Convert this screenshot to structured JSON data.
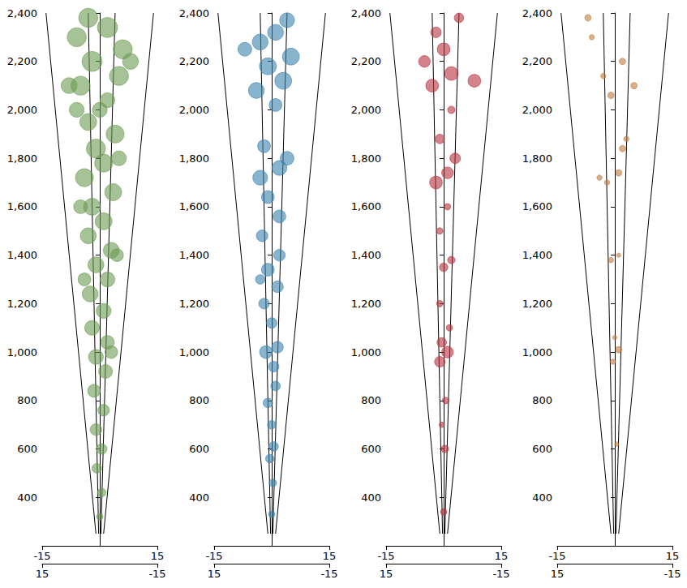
{
  "chart_data": [
    {
      "type": "scatter",
      "color": "#6b9a52",
      "xlim": [
        -15,
        15
      ],
      "xticks": [
        -15,
        15
      ],
      "zlim": [
        -15,
        15
      ],
      "zticks": [
        -15,
        15
      ],
      "ylim": [
        200,
        2400
      ],
      "yticks": [
        400,
        600,
        800,
        1000,
        1200,
        1400,
        1600,
        1800,
        2000,
        2200,
        2400
      ],
      "cone_edges": [
        [
          [
            -1,
            250
          ],
          [
            -14,
            2400
          ]
        ],
        [
          [
            1,
            250
          ],
          [
            14,
            2400
          ]
        ],
        [
          [
            -0.3,
            250
          ],
          [
            -3,
            2400
          ]
        ],
        [
          [
            0.3,
            250
          ],
          [
            4,
            2400
          ]
        ]
      ],
      "points": {
        "x": [
          0,
          0.5,
          -0.8,
          0.5,
          -1,
          1,
          -1.5,
          1.5,
          -1,
          2,
          -2,
          1,
          -2.5,
          2,
          -1,
          3,
          -3,
          1,
          -2,
          3.5,
          -4,
          1,
          -1,
          4,
          -3,
          2,
          -5,
          5,
          -2,
          6,
          -6,
          2,
          -3,
          8,
          -8,
          5,
          -5,
          -4,
          3,
          4.5,
          -6,
          0
        ],
        "y": [
          320,
          420,
          520,
          600,
          680,
          760,
          840,
          920,
          980,
          1040,
          1100,
          1170,
          1240,
          1300,
          1360,
          1420,
          1480,
          1540,
          1600,
          1660,
          1720,
          1780,
          1840,
          1900,
          1950,
          2040,
          2100,
          2140,
          2200,
          2250,
          2300,
          2340,
          2380,
          2200,
          2100,
          1800,
          1600,
          1300,
          1000,
          1400,
          2000,
          2000
        ],
        "size": [
          6,
          8,
          9,
          10,
          11,
          11,
          12,
          13,
          14,
          13,
          14,
          14,
          15,
          14,
          15,
          15,
          15,
          16,
          16,
          16,
          17,
          17,
          18,
          17,
          16,
          14,
          18,
          18,
          19,
          18,
          18,
          19,
          18,
          15,
          15,
          14,
          13,
          12,
          12,
          12,
          14,
          14
        ]
      }
    },
    {
      "type": "scatter",
      "color": "#3a82ad",
      "xlim": [
        -15,
        15
      ],
      "xticks": [
        -15,
        15
      ],
      "zlim": [
        -15,
        15
      ],
      "zticks": [
        -15,
        15
      ],
      "ylim": [
        200,
        2400
      ],
      "yticks": [
        400,
        600,
        800,
        1000,
        1200,
        1400,
        1600,
        1800,
        2000,
        2200,
        2400
      ],
      "cone_edges": [
        [
          [
            -1,
            250
          ],
          [
            -14,
            2400
          ]
        ],
        [
          [
            1,
            250
          ],
          [
            14,
            2400
          ]
        ],
        [
          [
            -0.3,
            250
          ],
          [
            -3,
            2400
          ]
        ],
        [
          [
            0.3,
            250
          ],
          [
            4,
            2400
          ]
        ]
      ],
      "points": {
        "x": [
          0,
          0.3,
          -0.5,
          0.5,
          0,
          -1,
          1,
          0.5,
          -1.5,
          1.5,
          0,
          -2,
          1.5,
          -1,
          2,
          -2.5,
          2,
          -1,
          -3,
          2,
          4,
          -2,
          1,
          -4,
          3,
          -1,
          5,
          -3,
          1,
          4,
          -7,
          -3
        ],
        "y": [
          330,
          460,
          560,
          610,
          700,
          790,
          860,
          940,
          1000,
          1020,
          1120,
          1200,
          1270,
          1340,
          1400,
          1480,
          1560,
          1640,
          1720,
          1760,
          1800,
          1850,
          2020,
          2080,
          2120,
          2180,
          2220,
          2280,
          2320,
          2370,
          2250,
          1300
        ],
        "size": [
          6,
          7,
          8,
          9,
          8,
          9,
          9,
          10,
          12,
          11,
          10,
          10,
          11,
          12,
          11,
          11,
          12,
          12,
          14,
          14,
          13,
          12,
          12,
          15,
          16,
          16,
          16,
          15,
          15,
          14,
          13,
          9
        ]
      }
    },
    {
      "type": "scatter",
      "color": "#b5303a",
      "xlim": [
        -15,
        15
      ],
      "xticks": [
        -15,
        15
      ],
      "zlim": [
        -15,
        15
      ],
      "zticks": [
        -15,
        15
      ],
      "ylim": [
        200,
        2400
      ],
      "yticks": [
        400,
        600,
        800,
        1000,
        1200,
        1400,
        1600,
        1800,
        2000,
        2200,
        2400
      ],
      "cone_edges": [
        [
          [
            -1,
            250
          ],
          [
            -14,
            2400
          ]
        ],
        [
          [
            1,
            250
          ],
          [
            14,
            2400
          ]
        ],
        [
          [
            -0.3,
            250
          ],
          [
            -3,
            2400
          ]
        ],
        [
          [
            0.3,
            250
          ],
          [
            4,
            2400
          ]
        ]
      ],
      "points": {
        "x": [
          0,
          0.3,
          -0.5,
          0.5,
          -1,
          1,
          -0.5,
          1.5,
          -1,
          0,
          2,
          -1,
          1,
          -2,
          1,
          3,
          -1,
          2,
          -3,
          2,
          -5,
          0,
          -2,
          4,
          8
        ],
        "y": [
          340,
          600,
          700,
          800,
          960,
          1000,
          1040,
          1100,
          1200,
          1350,
          1380,
          1500,
          1600,
          1700,
          1740,
          1800,
          1880,
          2000,
          2100,
          2150,
          2200,
          2250,
          2320,
          2380,
          2120
        ],
        "size": [
          6,
          7,
          5,
          6,
          10,
          11,
          9,
          6,
          6,
          8,
          7,
          6,
          6,
          12,
          11,
          10,
          9,
          7,
          12,
          13,
          11,
          12,
          10,
          9,
          12
        ]
      }
    },
    {
      "type": "scatter",
      "color": "#c27a3e",
      "xlim": [
        -15,
        15
      ],
      "xticks": [
        -15,
        15
      ],
      "zlim": [
        -15,
        15
      ],
      "zticks": [
        -15,
        15
      ],
      "ylim": [
        200,
        2400
      ],
      "yticks": [
        400,
        600,
        800,
        1000,
        1200,
        1400,
        1600,
        1800,
        2000,
        2200,
        2400
      ],
      "cone_edges": [
        [
          [
            -1,
            250
          ],
          [
            -14,
            2400
          ]
        ],
        [
          [
            1,
            250
          ],
          [
            14,
            2400
          ]
        ],
        [
          [
            -0.3,
            250
          ],
          [
            -3,
            2400
          ]
        ],
        [
          [
            0.3,
            250
          ],
          [
            4,
            2400
          ]
        ]
      ],
      "points": {
        "x": [
          0.5,
          -0.5,
          1,
          0,
          -1,
          1,
          -2,
          -4,
          1,
          2,
          3,
          -1,
          5,
          -3,
          2,
          -6,
          -7
        ],
        "y": [
          620,
          960,
          1010,
          1060,
          1380,
          1400,
          1700,
          1720,
          1740,
          1840,
          1880,
          2060,
          2100,
          2140,
          2200,
          2300,
          2380
        ],
        "size": [
          4,
          5,
          6,
          4,
          5,
          4,
          5,
          5,
          6,
          6,
          5,
          6,
          6,
          5,
          6,
          5,
          6
        ]
      }
    }
  ]
}
